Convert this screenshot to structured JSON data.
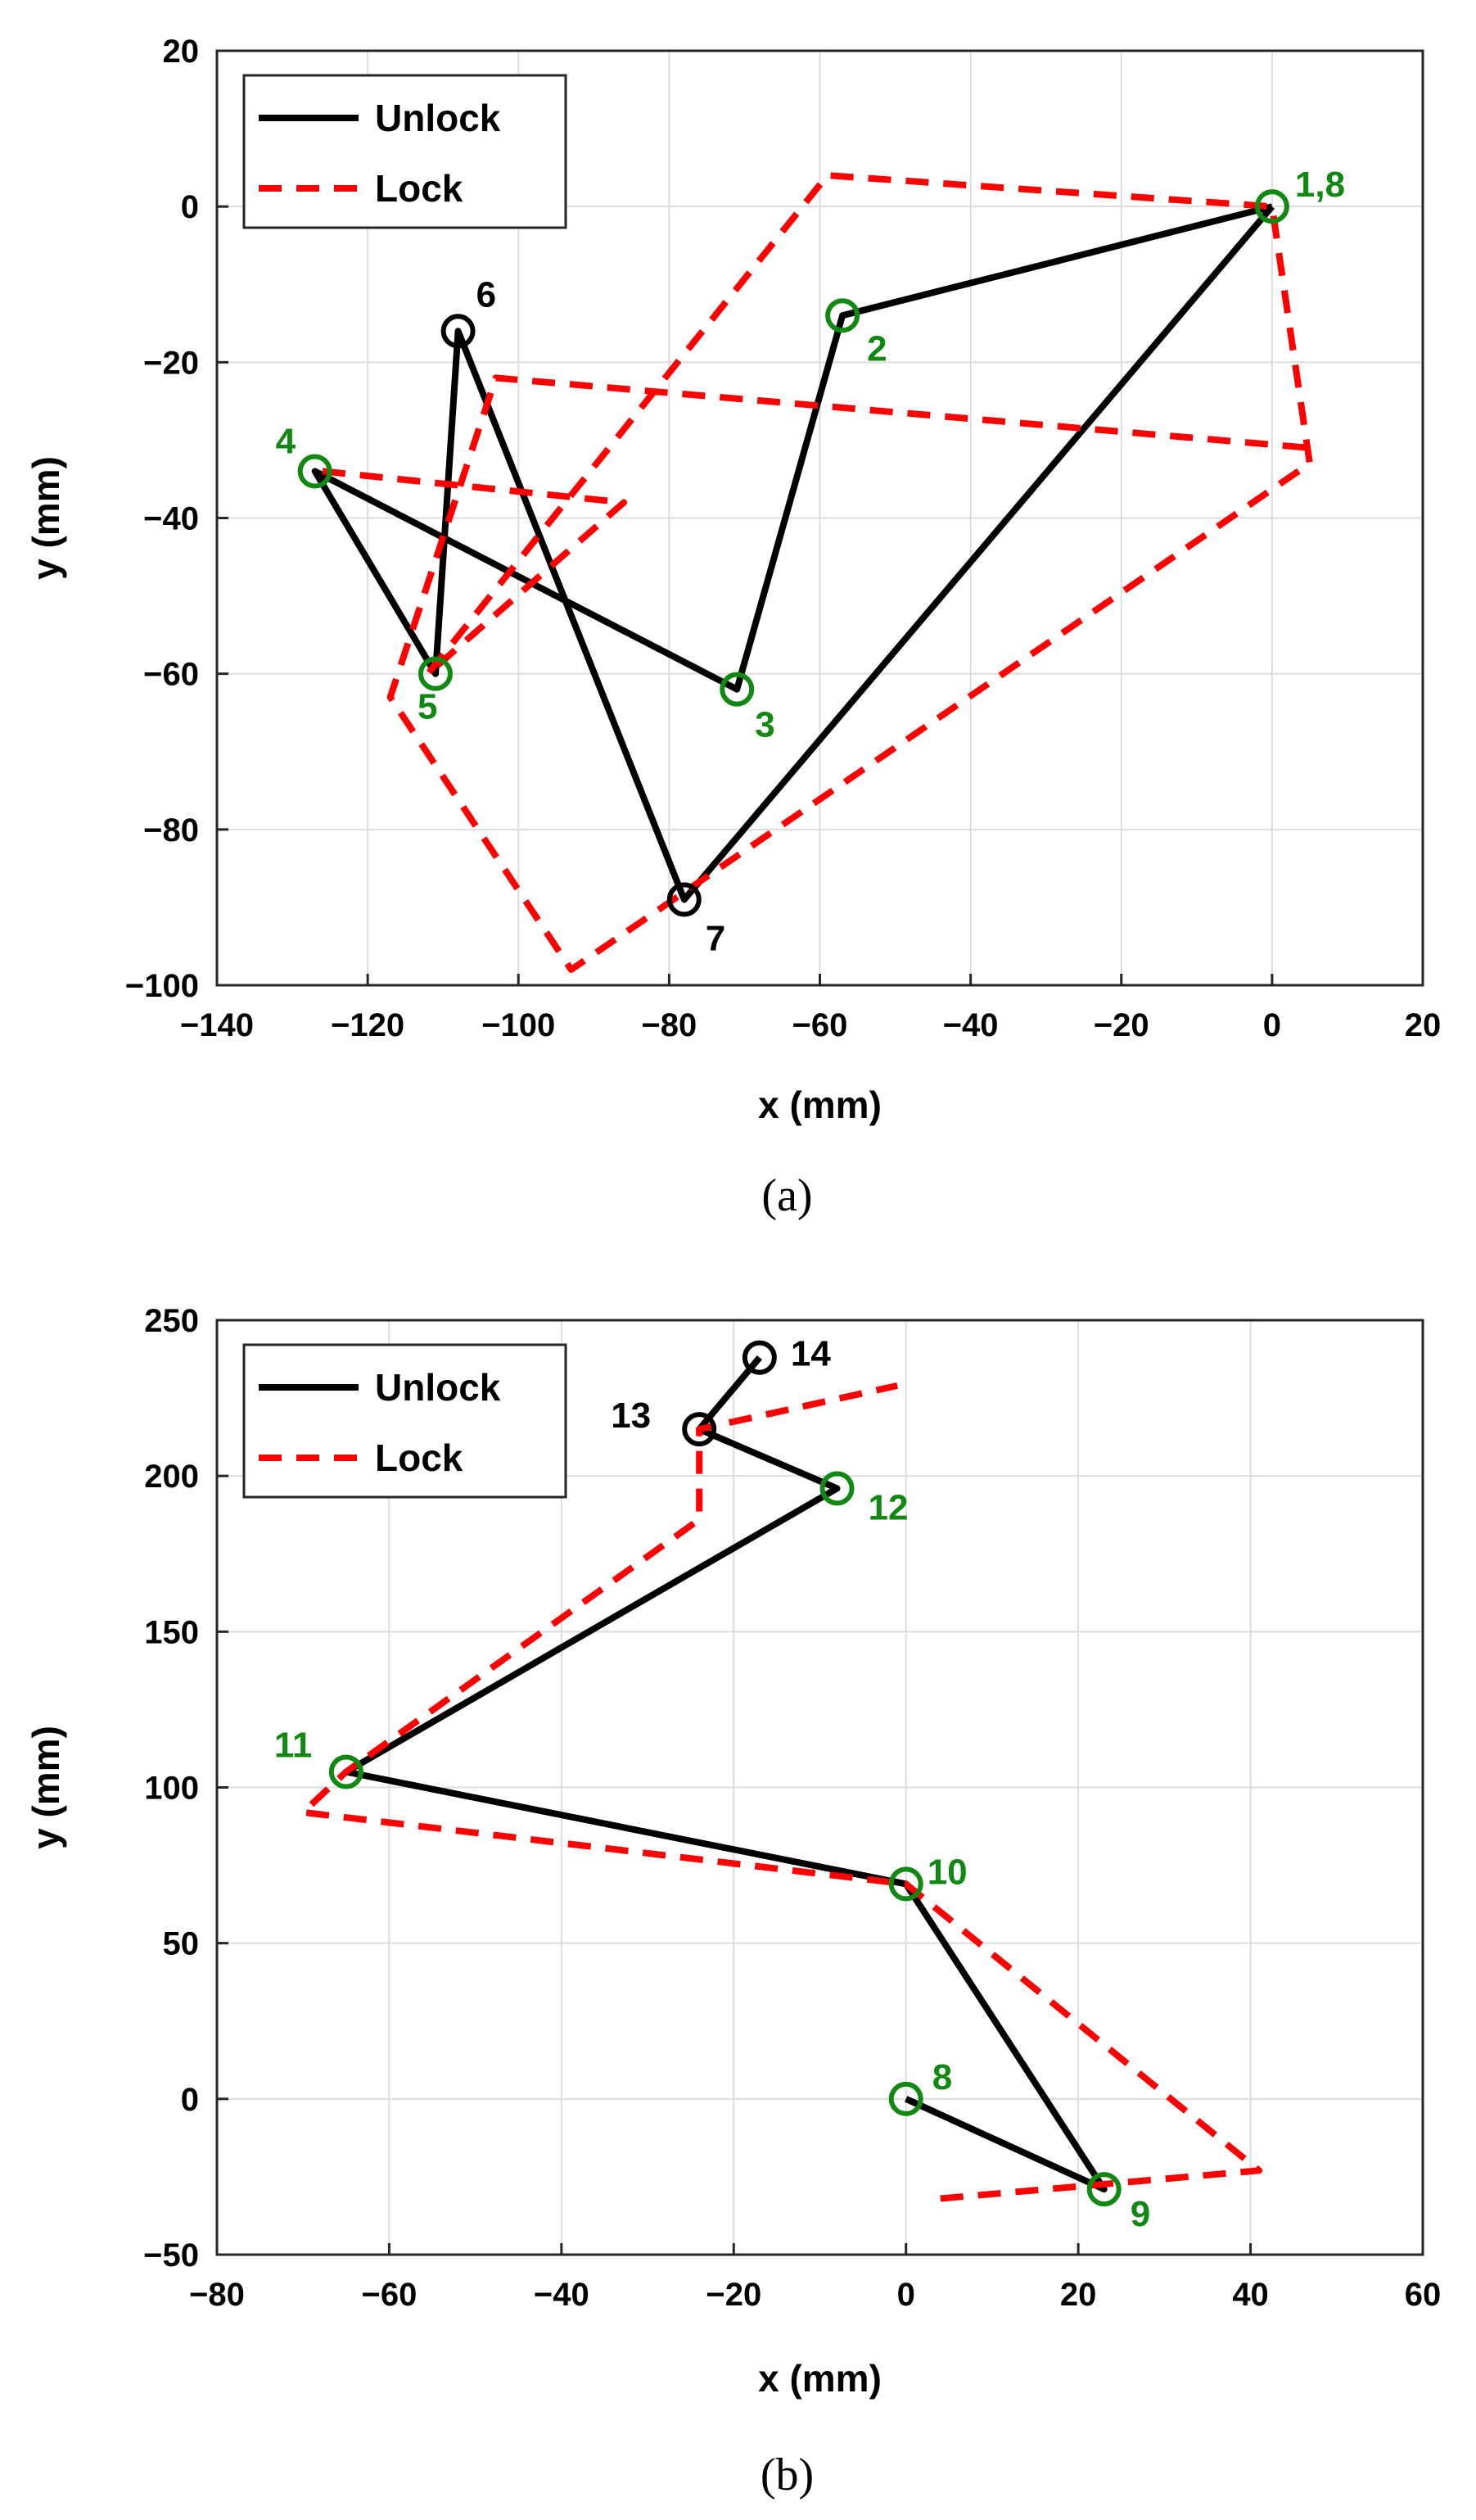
{
  "chart_data": [
    {
      "type": "line",
      "panel_label": "(a)",
      "xlabel": "x (mm)",
      "ylabel": "y (mm)",
      "xlim": [
        -140,
        20
      ],
      "ylim": [
        -100,
        20
      ],
      "xticks": [
        -140,
        -120,
        -100,
        -80,
        -60,
        -40,
        -20,
        0,
        20
      ],
      "yticks": [
        -100,
        -80,
        -60,
        -40,
        -20,
        0,
        20
      ],
      "xtick_labels": [
        "−140",
        "−120",
        "−100",
        "−80",
        "−60",
        "−40",
        "−20",
        "0",
        "20"
      ],
      "ytick_labels": [
        "−100",
        "−80",
        "−60",
        "−40",
        "−20",
        "0",
        "20"
      ],
      "grid": true,
      "legend": "top-left",
      "series": [
        {
          "name": "Unlock",
          "color": "#000000",
          "style": "solid",
          "x": [
            0,
            -57,
            -71,
            -127,
            -111,
            -108,
            -78,
            0
          ],
          "y": [
            0,
            -14,
            -62,
            -34,
            -60,
            -16,
            -89,
            0
          ]
        },
        {
          "name": "Lock",
          "color": "#ff0000",
          "style": "dashed",
          "x": [
            -126,
            -86,
            -112,
            -59,
            0,
            5,
            -93,
            -117,
            -103,
            5
          ],
          "y": [
            -34,
            -38,
            -60,
            4,
            0,
            -33,
            -98,
            -63,
            -22,
            -31
          ]
        }
      ],
      "markers": [
        {
          "x": 0,
          "y": 0,
          "label": "1,8",
          "color": "#118811"
        },
        {
          "x": -57,
          "y": -14,
          "label": "2",
          "color": "#118811"
        },
        {
          "x": -71,
          "y": -62,
          "label": "3",
          "color": "#118811"
        },
        {
          "x": -127,
          "y": -34,
          "label": "4",
          "color": "#118811"
        },
        {
          "x": -111,
          "y": -60,
          "label": "5",
          "color": "#118811"
        },
        {
          "x": -108,
          "y": -16,
          "label": "6",
          "color": "#000000"
        },
        {
          "x": -78,
          "y": -89,
          "label": "7",
          "color": "#000000"
        }
      ]
    },
    {
      "type": "line",
      "panel_label": "(b)",
      "xlabel": "x (mm)",
      "ylabel": "y (mm)",
      "xlim": [
        -80,
        60
      ],
      "ylim": [
        -50,
        250
      ],
      "xticks": [
        -80,
        -60,
        -40,
        -20,
        0,
        20,
        40,
        60
      ],
      "yticks": [
        -50,
        0,
        50,
        100,
        150,
        200,
        250
      ],
      "xtick_labels": [
        "−80",
        "−60",
        "−40",
        "−20",
        "0",
        "20",
        "40",
        "60"
      ],
      "ytick_labels": [
        "−50",
        "0",
        "50",
        "100",
        "150",
        "200",
        "250"
      ],
      "grid": true,
      "legend": "top-left",
      "series": [
        {
          "name": "Unlock",
          "color": "#000000",
          "style": "solid",
          "x": [
            0,
            23,
            0,
            -65,
            -8,
            -24,
            -17
          ],
          "y": [
            0,
            -29,
            69,
            105,
            196,
            215,
            238
          ]
        },
        {
          "name": "Lock",
          "color": "#ff0000",
          "style": "dashed",
          "x": [
            4,
            41,
            0,
            -70,
            -65,
            -24,
            -24,
            -1
          ],
          "y": [
            -32,
            -23,
            69,
            92,
            105,
            186,
            215,
            229
          ]
        }
      ],
      "markers": [
        {
          "x": 0,
          "y": 0,
          "label": "8",
          "color": "#118811"
        },
        {
          "x": 23,
          "y": -29,
          "label": "9",
          "color": "#118811"
        },
        {
          "x": 0,
          "y": 69,
          "label": "10",
          "color": "#118811"
        },
        {
          "x": -65,
          "y": 105,
          "label": "11",
          "color": "#118811"
        },
        {
          "x": -8,
          "y": 196,
          "label": "12",
          "color": "#118811"
        },
        {
          "x": -24,
          "y": 215,
          "label": "13",
          "color": "#000000"
        },
        {
          "x": -17,
          "y": 238,
          "label": "14",
          "color": "#000000"
        }
      ]
    }
  ]
}
